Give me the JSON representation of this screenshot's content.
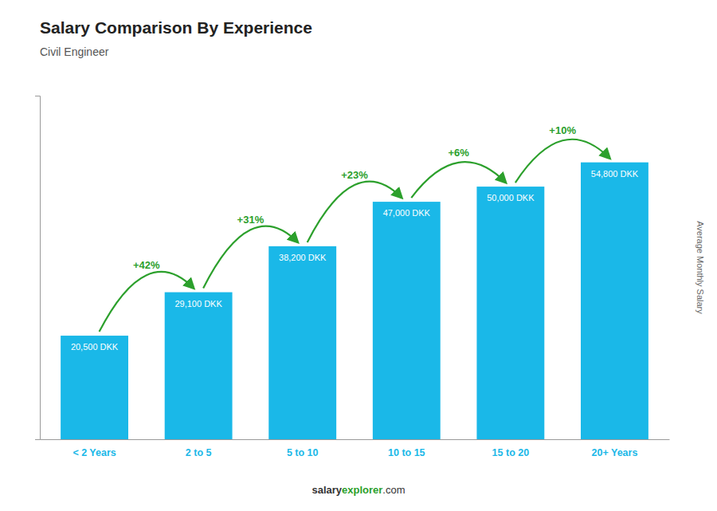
{
  "chart_data": {
    "type": "bar",
    "title": "Salary Comparison By Experience",
    "subtitle": "Civil Engineer",
    "categories": [
      "< 2 Years",
      "2 to 5",
      "5 to 10",
      "10 to 15",
      "15 to 20",
      "20+ Years"
    ],
    "values": [
      20500,
      29100,
      38200,
      47000,
      50000,
      54800
    ],
    "value_labels": [
      "20,500 DKK",
      "29,100 DKK",
      "38,200 DKK",
      "47,000 DKK",
      "50,000 DKK",
      "54,800 DKK"
    ],
    "annotations": [
      "+42%",
      "+31%",
      "+23%",
      "+6%",
      "+10%"
    ],
    "ylabel": "Average Monthly Salary",
    "footer": [
      "salary",
      "explorer",
      ".com"
    ],
    "color": "#1ab8e8",
    "ylim": [
      0,
      68000
    ],
    "tick_labels": "x",
    "grid": false
  }
}
